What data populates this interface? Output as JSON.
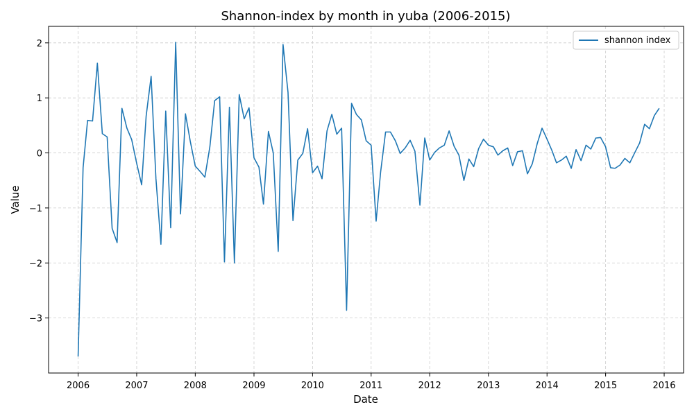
{
  "chart_data": {
    "type": "line",
    "title": "Shannon-index by month in yuba (2006-2015)",
    "xlabel": "Date",
    "ylabel": "Value",
    "xlim": [
      "2005-07-01",
      "2016-05-01"
    ],
    "ylim": [
      -4.0,
      2.3
    ],
    "x_ticks": [
      "2006",
      "2007",
      "2008",
      "2009",
      "2010",
      "2011",
      "2012",
      "2013",
      "2014",
      "2015",
      "2016"
    ],
    "y_ticks": [
      2,
      1,
      0,
      -1,
      -2,
      -3
    ],
    "y_tick_labels": [
      "2",
      "1",
      "0",
      "−1",
      "−2",
      "−3"
    ],
    "grid": true,
    "legend": "top-right",
    "color": "#1f77b4",
    "series": [
      {
        "name": "shannon index",
        "x": [
          "2006-01",
          "2006-02",
          "2006-03",
          "2006-04",
          "2006-05",
          "2006-06",
          "2006-07",
          "2006-08",
          "2006-09",
          "2006-10",
          "2006-11",
          "2006-12",
          "2007-01",
          "2007-02",
          "2007-03",
          "2007-04",
          "2007-05",
          "2007-06",
          "2007-07",
          "2007-08",
          "2007-09",
          "2007-10",
          "2007-11",
          "2007-12",
          "2008-01",
          "2008-02",
          "2008-03",
          "2008-04",
          "2008-05",
          "2008-06",
          "2008-07",
          "2008-08",
          "2008-09",
          "2008-10",
          "2008-11",
          "2008-12",
          "2009-01",
          "2009-02",
          "2009-03",
          "2009-04",
          "2009-05",
          "2009-06",
          "2009-07",
          "2009-08",
          "2009-09",
          "2009-10",
          "2009-11",
          "2009-12",
          "2010-01",
          "2010-02",
          "2010-03",
          "2010-04",
          "2010-05",
          "2010-06",
          "2010-07",
          "2010-08",
          "2010-09",
          "2010-10",
          "2010-11",
          "2010-12",
          "2011-01",
          "2011-02",
          "2011-03",
          "2011-04",
          "2011-05",
          "2011-06",
          "2011-07",
          "2011-08",
          "2011-09",
          "2011-10",
          "2011-11",
          "2011-12",
          "2012-01",
          "2012-02",
          "2012-03",
          "2012-04",
          "2012-05",
          "2012-06",
          "2012-07",
          "2012-08",
          "2012-09",
          "2012-10",
          "2012-11",
          "2012-12",
          "2013-01",
          "2013-02",
          "2013-03",
          "2013-04",
          "2013-05",
          "2013-06",
          "2013-07",
          "2013-08",
          "2013-09",
          "2013-10",
          "2013-11",
          "2013-12",
          "2014-01",
          "2014-02",
          "2014-03",
          "2014-04",
          "2014-05",
          "2014-06",
          "2014-07",
          "2014-08",
          "2014-09",
          "2014-10",
          "2014-11",
          "2014-12",
          "2015-01",
          "2015-02",
          "2015-03",
          "2015-04",
          "2015-05",
          "2015-06",
          "2015-07",
          "2015-08",
          "2015-09",
          "2015-10",
          "2015-11",
          "2015-12"
        ],
        "y": [
          -3.7,
          -0.27,
          0.59,
          0.58,
          1.63,
          0.35,
          0.29,
          -1.37,
          -1.63,
          0.81,
          0.45,
          0.24,
          -0.19,
          -0.58,
          0.67,
          1.39,
          -0.47,
          -1.66,
          0.76,
          -1.36,
          2.01,
          -1.11,
          0.71,
          0.21,
          -0.24,
          -0.34,
          -0.44,
          0.11,
          0.95,
          1.02,
          -1.98,
          0.83,
          -2.0,
          1.06,
          0.62,
          0.82,
          -0.09,
          -0.26,
          -0.93,
          0.39,
          0.0,
          -1.79,
          1.97,
          1.1,
          -1.23,
          -0.13,
          -0.01,
          0.44,
          -0.36,
          -0.24,
          -0.47,
          0.4,
          0.7,
          0.34,
          0.45,
          -2.86,
          0.9,
          0.7,
          0.6,
          0.22,
          0.14,
          -1.24,
          -0.35,
          0.38,
          0.38,
          0.22,
          -0.01,
          0.09,
          0.23,
          0.03,
          -0.95,
          0.27,
          -0.13,
          0.01,
          0.09,
          0.14,
          0.4,
          0.12,
          -0.04,
          -0.5,
          -0.11,
          -0.25,
          0.08,
          0.25,
          0.14,
          0.11,
          -0.04,
          0.04,
          0.09,
          -0.23,
          0.02,
          0.04,
          -0.38,
          -0.2,
          0.17,
          0.45,
          0.25,
          0.04,
          -0.18,
          -0.13,
          -0.06,
          -0.28,
          0.06,
          -0.14,
          0.14,
          0.07,
          0.27,
          0.28,
          0.11,
          -0.27,
          -0.28,
          -0.22,
          -0.1,
          -0.18,
          0.0,
          0.18,
          0.52,
          0.44,
          0.68,
          0.81
        ]
      }
    ]
  }
}
